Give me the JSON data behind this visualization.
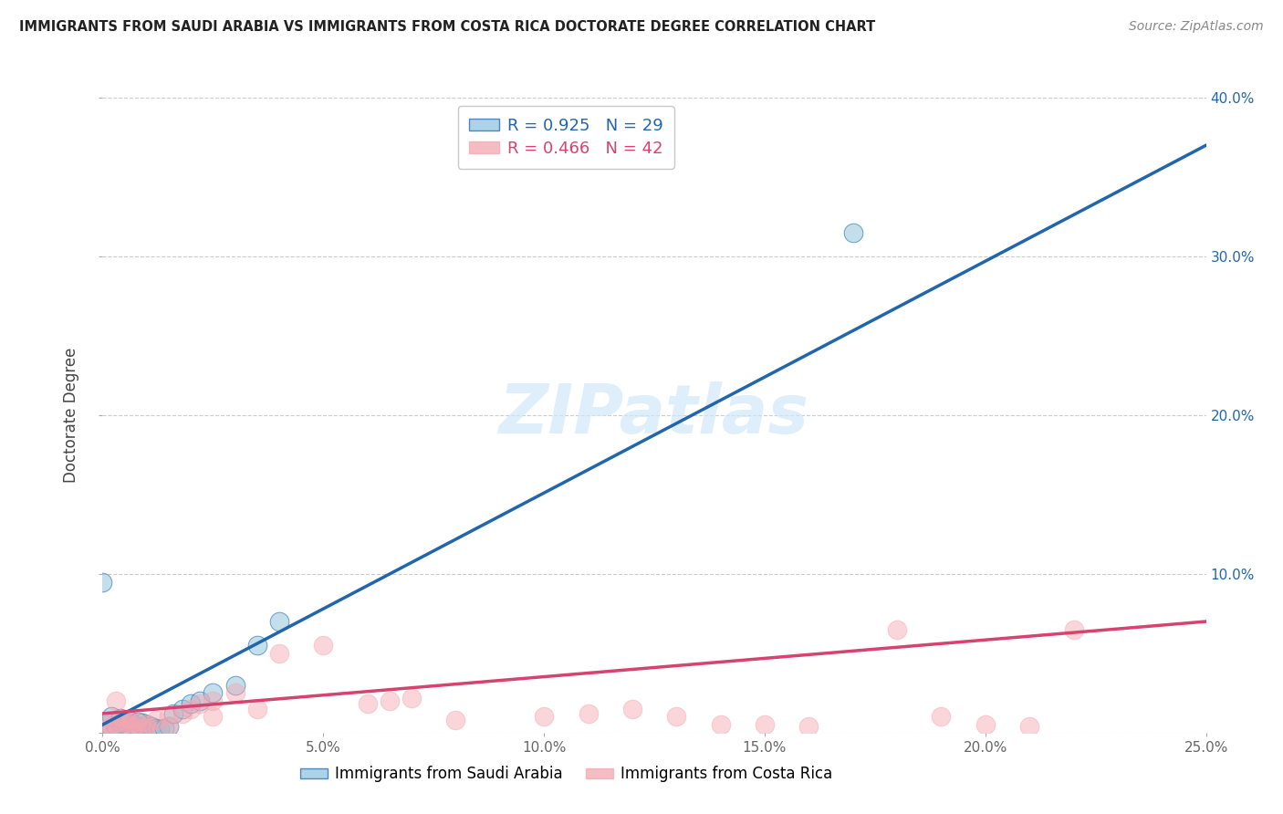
{
  "title": "IMMIGRANTS FROM SAUDI ARABIA VS IMMIGRANTS FROM COSTA RICA DOCTORATE DEGREE CORRELATION CHART",
  "source": "Source: ZipAtlas.com",
  "ylabel": "Doctorate Degree",
  "xlim": [
    0,
    0.25
  ],
  "ylim": [
    0,
    0.4
  ],
  "xticks": [
    0.0,
    0.05,
    0.1,
    0.15,
    0.2,
    0.25
  ],
  "yticks": [
    0.0,
    0.1,
    0.2,
    0.3,
    0.4
  ],
  "xtick_labels": [
    "0.0%",
    "5.0%",
    "10.0%",
    "15.0%",
    "20.0%",
    "25.0%"
  ],
  "ytick_labels_left": [
    "",
    "",
    "",
    "",
    ""
  ],
  "ytick_labels_right": [
    "",
    "10.0%",
    "20.0%",
    "30.0%",
    "40.0%"
  ],
  "legend1_label": "Immigrants from Saudi Arabia",
  "legend2_label": "Immigrants from Costa Rica",
  "r1": 0.925,
  "n1": 29,
  "r2": 0.466,
  "n2": 42,
  "color1": "#92c5de",
  "color2": "#f4a6b0",
  "line_color1": "#2166ac",
  "line_color2": "#d6436e",
  "watermark": "ZIPatlas",
  "background": "#ffffff",
  "scatter1_x": [
    0.001,
    0.002,
    0.003,
    0.004,
    0.005,
    0.006,
    0.007,
    0.008,
    0.009,
    0.01,
    0.011,
    0.012,
    0.013,
    0.014,
    0.015,
    0.002,
    0.004,
    0.006,
    0.008,
    0.016,
    0.018,
    0.02,
    0.022,
    0.025,
    0.03,
    0.035,
    0.04,
    0.17,
    0.0
  ],
  "scatter1_y": [
    0.005,
    0.003,
    0.004,
    0.006,
    0.007,
    0.008,
    0.005,
    0.004,
    0.006,
    0.005,
    0.004,
    0.003,
    0.002,
    0.003,
    0.004,
    0.01,
    0.009,
    0.008,
    0.007,
    0.012,
    0.015,
    0.018,
    0.02,
    0.025,
    0.03,
    0.055,
    0.07,
    0.315,
    0.095
  ],
  "scatter2_x": [
    0.001,
    0.002,
    0.003,
    0.004,
    0.005,
    0.006,
    0.007,
    0.008,
    0.009,
    0.01,
    0.012,
    0.015,
    0.018,
    0.02,
    0.022,
    0.025,
    0.03,
    0.035,
    0.04,
    0.05,
    0.06,
    0.065,
    0.07,
    0.08,
    0.1,
    0.11,
    0.12,
    0.13,
    0.14,
    0.15,
    0.16,
    0.18,
    0.19,
    0.2,
    0.21,
    0.22,
    0.0,
    0.003,
    0.006,
    0.01,
    0.015,
    0.025
  ],
  "scatter2_y": [
    0.005,
    0.004,
    0.006,
    0.003,
    0.007,
    0.005,
    0.004,
    0.006,
    0.003,
    0.005,
    0.008,
    0.01,
    0.012,
    0.015,
    0.018,
    0.02,
    0.025,
    0.015,
    0.05,
    0.055,
    0.018,
    0.02,
    0.022,
    0.008,
    0.01,
    0.012,
    0.015,
    0.01,
    0.005,
    0.005,
    0.004,
    0.065,
    0.01,
    0.005,
    0.004,
    0.065,
    0.002,
    0.02,
    0.008,
    0.003,
    0.004,
    0.01
  ],
  "line1_x": [
    0.0,
    0.25
  ],
  "line1_y": [
    0.005,
    0.37
  ],
  "line2_x": [
    0.0,
    0.25
  ],
  "line2_y": [
    0.012,
    0.07
  ]
}
